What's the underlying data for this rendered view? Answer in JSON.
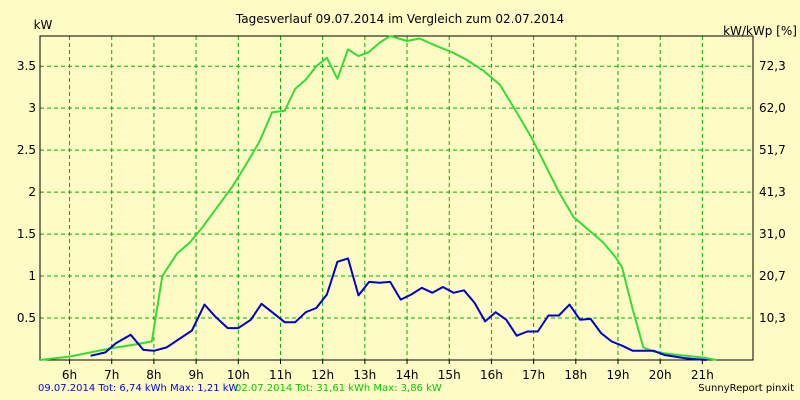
{
  "chart_data": {
    "type": "line",
    "title": "Tagesverlauf 09.07.2014 im Vergleich zum 02.07.2014",
    "ylabel_left": "kW",
    "ylabel_right": "kW/kWp [%]",
    "xlim": [
      5.3,
      22.2
    ],
    "ylim": [
      0,
      3.86
    ],
    "grid": true,
    "y_left_ticks": [
      "0.5",
      "1",
      "1.5",
      "2",
      "2.5",
      "3",
      "3.5"
    ],
    "y_left_tick_values": [
      0.5,
      1,
      1.5,
      2,
      2.5,
      3,
      3.5
    ],
    "y_right_ticks": [
      "10,3",
      "20,7",
      "31,0",
      "41,3",
      "51,7",
      "62,0",
      "72,3"
    ],
    "x_ticks": [
      "6h",
      "7h",
      "8h",
      "9h",
      "10h",
      "11h",
      "12h",
      "13h",
      "14h",
      "15h",
      "16h",
      "17h",
      "18h",
      "19h",
      "20h",
      "21h"
    ],
    "x_tick_values": [
      6,
      7,
      8,
      9,
      10,
      11,
      12,
      13,
      14,
      15,
      16,
      17,
      18,
      19,
      20,
      21
    ],
    "series": [
      {
        "name": "09.07.2014",
        "color": "#0000cc",
        "legend": "09.07.2014 Tot: 6,74 kWh Max: 1,21 kW",
        "points": [
          [
            6.5,
            0.05
          ],
          [
            6.85,
            0.09
          ],
          [
            7.1,
            0.2
          ],
          [
            7.45,
            0.3
          ],
          [
            7.75,
            0.12
          ],
          [
            8.0,
            0.11
          ],
          [
            8.3,
            0.15
          ],
          [
            8.6,
            0.25
          ],
          [
            8.9,
            0.35
          ],
          [
            9.2,
            0.66
          ],
          [
            9.45,
            0.52
          ],
          [
            9.75,
            0.38
          ],
          [
            10.0,
            0.38
          ],
          [
            10.3,
            0.48
          ],
          [
            10.55,
            0.67
          ],
          [
            10.85,
            0.55
          ],
          [
            11.1,
            0.45
          ],
          [
            11.35,
            0.45
          ],
          [
            11.6,
            0.57
          ],
          [
            11.85,
            0.62
          ],
          [
            12.1,
            0.78
          ],
          [
            12.35,
            1.17
          ],
          [
            12.6,
            1.21
          ],
          [
            12.85,
            0.77
          ],
          [
            13.1,
            0.93
          ],
          [
            13.35,
            0.92
          ],
          [
            13.6,
            0.93
          ],
          [
            13.85,
            0.72
          ],
          [
            14.1,
            0.78
          ],
          [
            14.35,
            0.86
          ],
          [
            14.6,
            0.8
          ],
          [
            14.85,
            0.87
          ],
          [
            15.1,
            0.8
          ],
          [
            15.35,
            0.83
          ],
          [
            15.6,
            0.68
          ],
          [
            15.85,
            0.46
          ],
          [
            16.1,
            0.57
          ],
          [
            16.35,
            0.48
          ],
          [
            16.6,
            0.29
          ],
          [
            16.85,
            0.34
          ],
          [
            17.1,
            0.34
          ],
          [
            17.35,
            0.53
          ],
          [
            17.6,
            0.53
          ],
          [
            17.85,
            0.66
          ],
          [
            18.1,
            0.48
          ],
          [
            18.35,
            0.49
          ],
          [
            18.6,
            0.32
          ],
          [
            18.85,
            0.22
          ],
          [
            19.1,
            0.17
          ],
          [
            19.35,
            0.11
          ],
          [
            19.6,
            0.11
          ],
          [
            19.85,
            0.11
          ],
          [
            20.1,
            0.06
          ],
          [
            20.35,
            0.04
          ],
          [
            20.6,
            0.02
          ],
          [
            20.85,
            0.01
          ],
          [
            21.1,
            0.0
          ]
        ]
      },
      {
        "name": "02.07.2014",
        "color": "#33dd33",
        "legend": "02.07.2014 Tot: 31,61 kWh Max: 3,86 kW",
        "points": [
          [
            5.3,
            0.0
          ],
          [
            6.0,
            0.04
          ],
          [
            6.5,
            0.09
          ],
          [
            7.0,
            0.14
          ],
          [
            7.5,
            0.18
          ],
          [
            7.95,
            0.22
          ],
          [
            8.2,
            1.0
          ],
          [
            8.55,
            1.27
          ],
          [
            8.85,
            1.4
          ],
          [
            9.15,
            1.58
          ],
          [
            9.5,
            1.82
          ],
          [
            9.85,
            2.06
          ],
          [
            10.15,
            2.3
          ],
          [
            10.5,
            2.6
          ],
          [
            10.8,
            2.95
          ],
          [
            11.1,
            2.97
          ],
          [
            11.35,
            3.23
          ],
          [
            11.6,
            3.34
          ],
          [
            11.85,
            3.5
          ],
          [
            12.1,
            3.6
          ],
          [
            12.35,
            3.35
          ],
          [
            12.6,
            3.7
          ],
          [
            12.85,
            3.62
          ],
          [
            13.1,
            3.67
          ],
          [
            13.35,
            3.78
          ],
          [
            13.6,
            3.86
          ],
          [
            14.0,
            3.8
          ],
          [
            14.3,
            3.83
          ],
          [
            14.65,
            3.75
          ],
          [
            15.05,
            3.67
          ],
          [
            15.4,
            3.58
          ],
          [
            15.8,
            3.45
          ],
          [
            16.2,
            3.28
          ],
          [
            16.6,
            2.95
          ],
          [
            16.95,
            2.65
          ],
          [
            17.3,
            2.3
          ],
          [
            17.6,
            2.0
          ],
          [
            17.95,
            1.7
          ],
          [
            18.3,
            1.55
          ],
          [
            18.65,
            1.4
          ],
          [
            18.95,
            1.22
          ],
          [
            19.1,
            1.1
          ],
          [
            19.35,
            0.6
          ],
          [
            19.6,
            0.15
          ],
          [
            19.85,
            0.1
          ],
          [
            20.25,
            0.07
          ],
          [
            20.6,
            0.05
          ],
          [
            21.0,
            0.03
          ],
          [
            21.35,
            0.0
          ]
        ]
      }
    ]
  },
  "footer_right": "SunnyReport pinxit"
}
